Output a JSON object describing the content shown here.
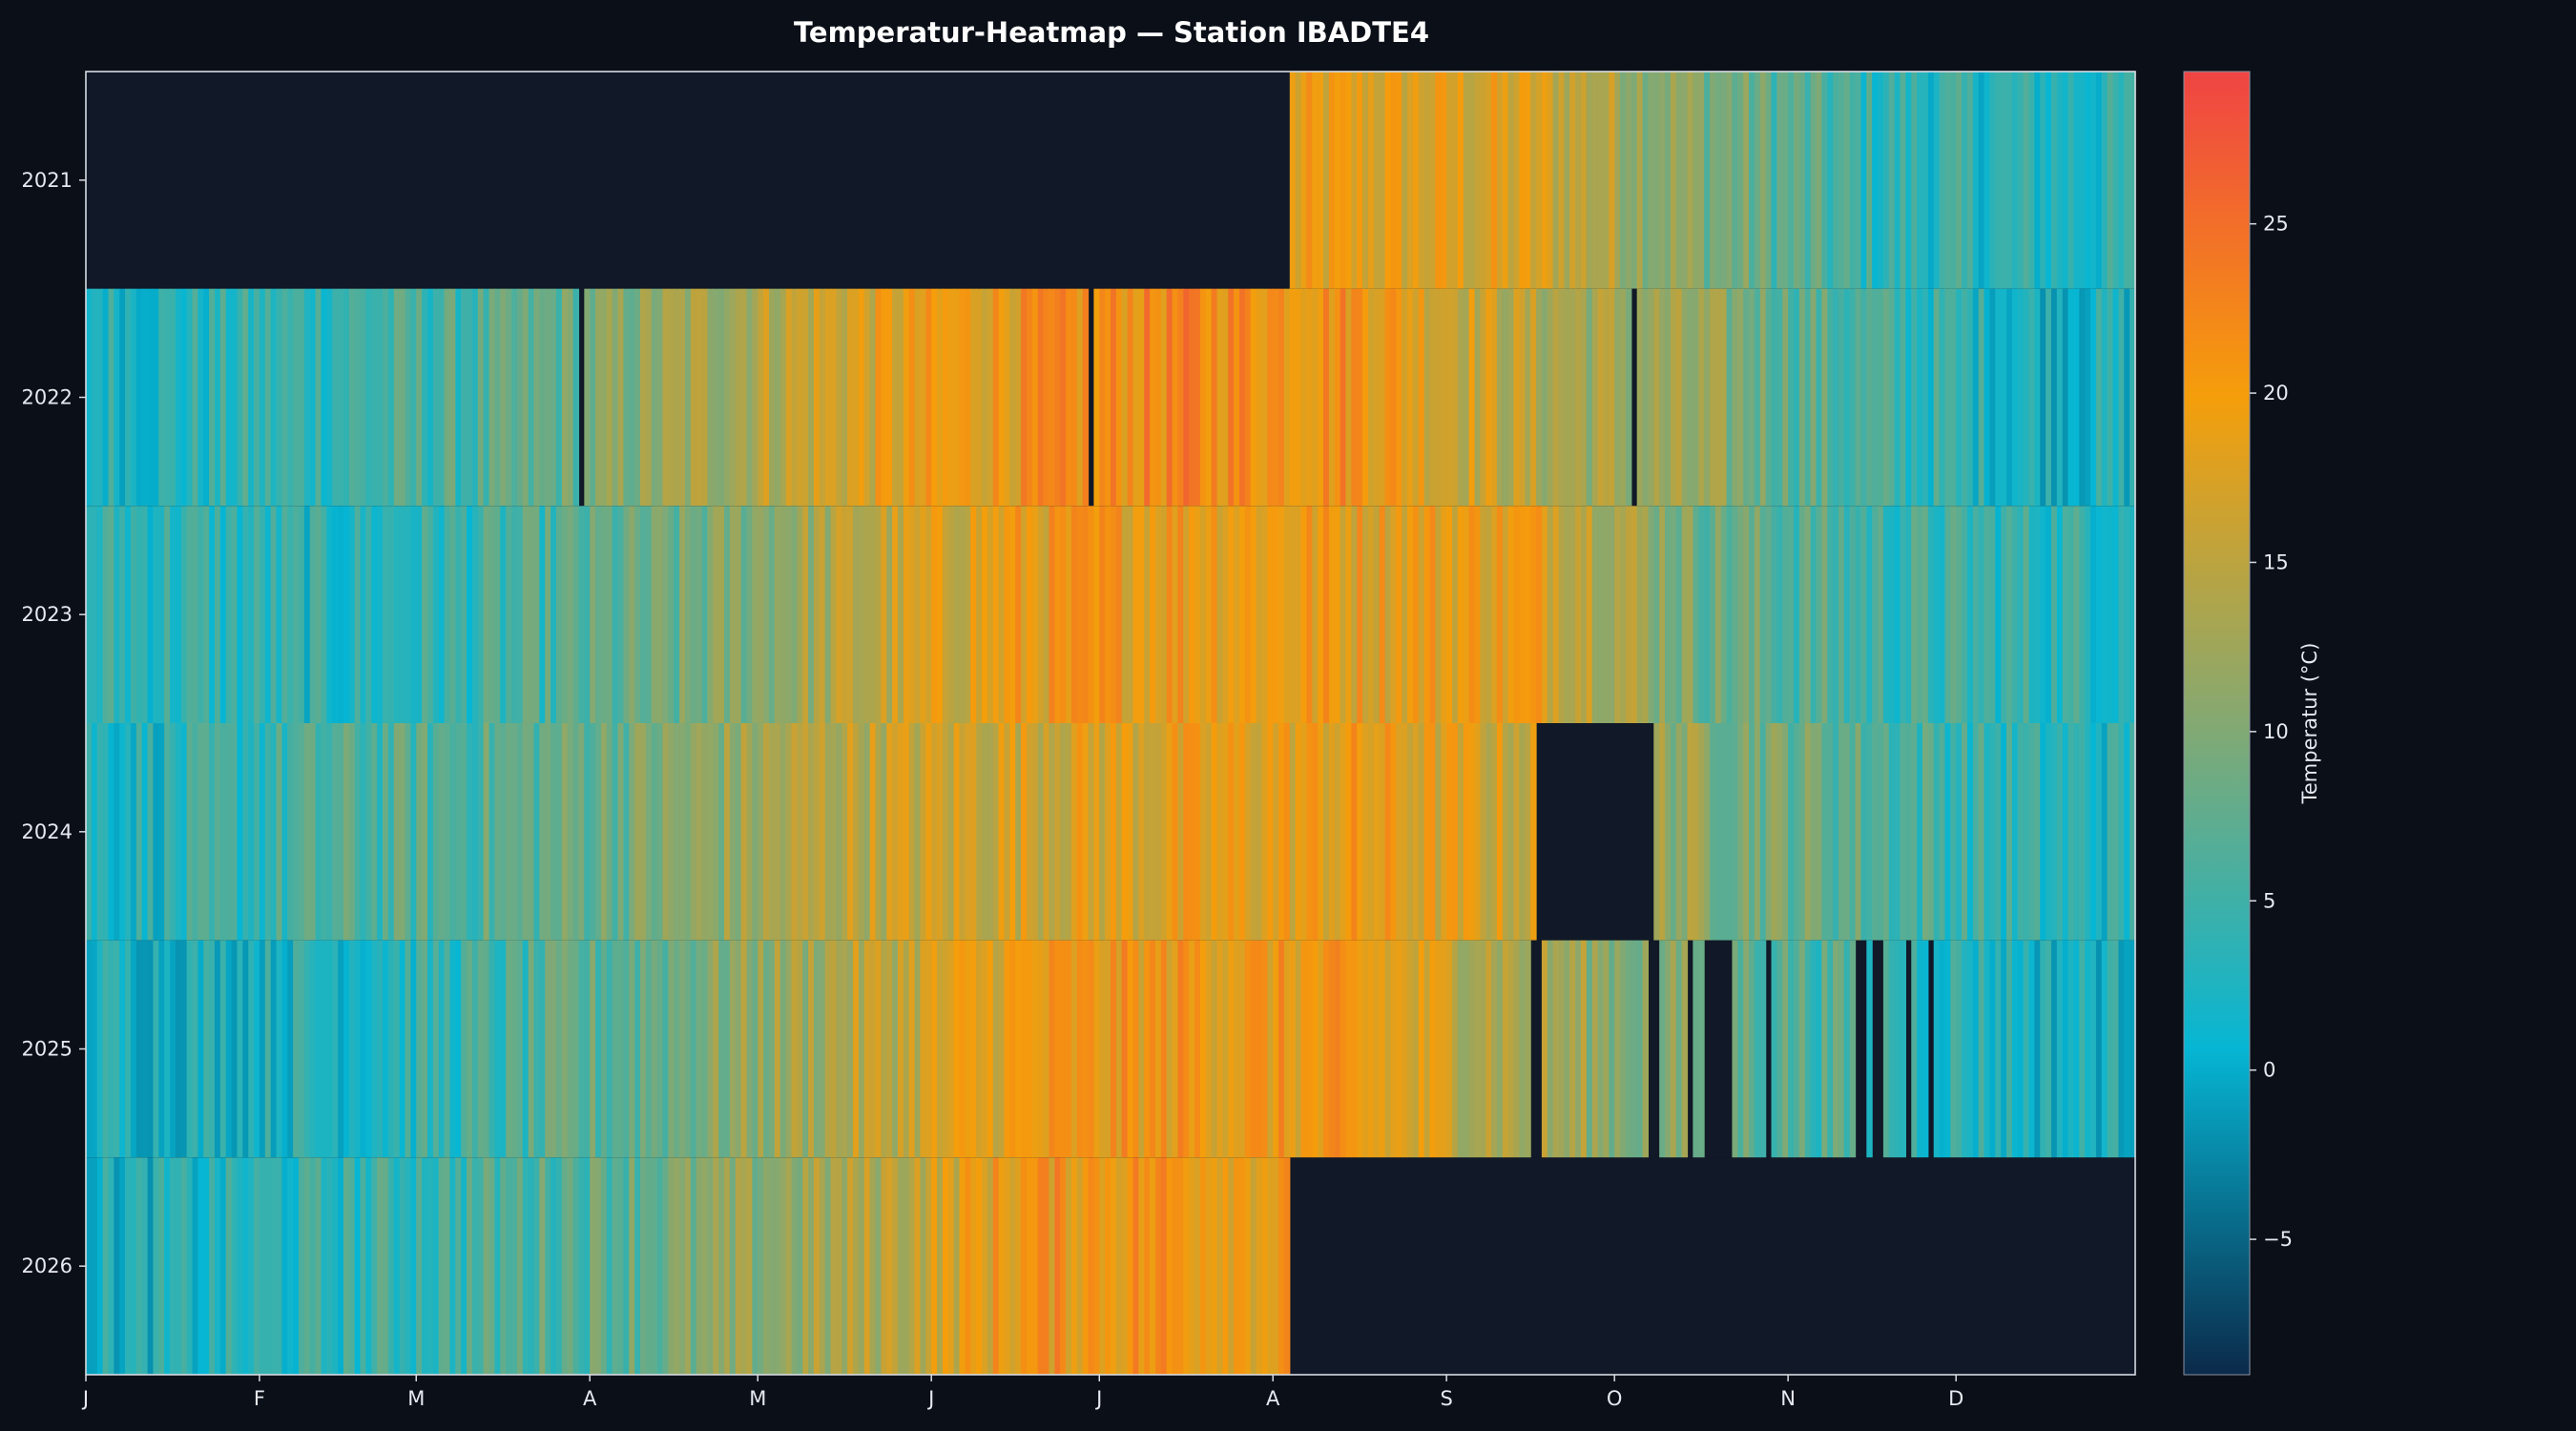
{
  "chart_data": {
    "type": "heatmap",
    "title": "Temperatur-Heatmap — Station IBADTE4",
    "xlabel": "",
    "ylabel": "",
    "x_tick_labels": [
      "J",
      "F",
      "M",
      "A",
      "M",
      "J",
      "J",
      "A",
      "S",
      "O",
      "N",
      "D"
    ],
    "rows": [
      "2021",
      "2022",
      "2023",
      "2024",
      "2025",
      "2026"
    ],
    "x_unit": "day of year",
    "x_range": [
      1,
      366
    ],
    "colorbar": {
      "label": "Temperatur (°C)",
      "range": [
        -9,
        29.5
      ],
      "ticks": [
        -5,
        0,
        5,
        10,
        15,
        20,
        25
      ],
      "tick_labels": [
        "−5",
        "0",
        "5",
        "10",
        "15",
        "20",
        "25"
      ],
      "colors": [
        "#0b2a4a",
        "#06b6d4",
        "#84a972",
        "#f59e0b",
        "#ef4444"
      ]
    },
    "no_data_color": "#111827",
    "background": "#0b0f17",
    "grid": false,
    "monthly_approx_mean": {
      "2021": [
        null,
        null,
        null,
        null,
        null,
        null,
        null,
        18,
        17,
        10,
        4,
        3
      ],
      "2022": [
        3,
        5,
        6,
        12,
        17,
        20,
        22,
        21,
        14,
        11,
        5,
        2
      ],
      "2023": [
        4,
        3,
        5,
        8,
        14,
        19,
        20,
        19,
        19,
        9,
        5,
        4
      ],
      "2024": [
        3,
        6,
        7,
        10,
        15,
        17,
        18,
        19,
        16,
        11,
        7,
        3
      ],
      "2025": [
        2,
        3,
        5,
        9,
        14,
        19,
        20,
        19,
        13,
        9,
        5,
        2
      ],
      "2026": [
        2,
        4,
        6,
        9,
        13,
        20,
        21,
        18,
        null,
        null,
        null,
        null
      ]
    },
    "missing_ranges": {
      "2021": [
        [
          1,
          215
        ]
      ],
      "2022": [
        [
          89,
          89
        ],
        [
          180,
          180
        ],
        [
          277,
          277
        ]
      ],
      "2023": [],
      "2024": [
        [
          260,
          280
        ]
      ],
      "2025": [
        [
          259,
          260
        ],
        [
          280,
          281
        ],
        [
          287,
          287
        ],
        [
          290,
          294
        ],
        [
          301,
          301
        ],
        [
          317,
          318
        ],
        [
          320,
          321
        ],
        [
          326,
          326
        ],
        [
          330,
          330
        ]
      ],
      "2026": [
        [
          216,
          366
        ]
      ]
    }
  }
}
